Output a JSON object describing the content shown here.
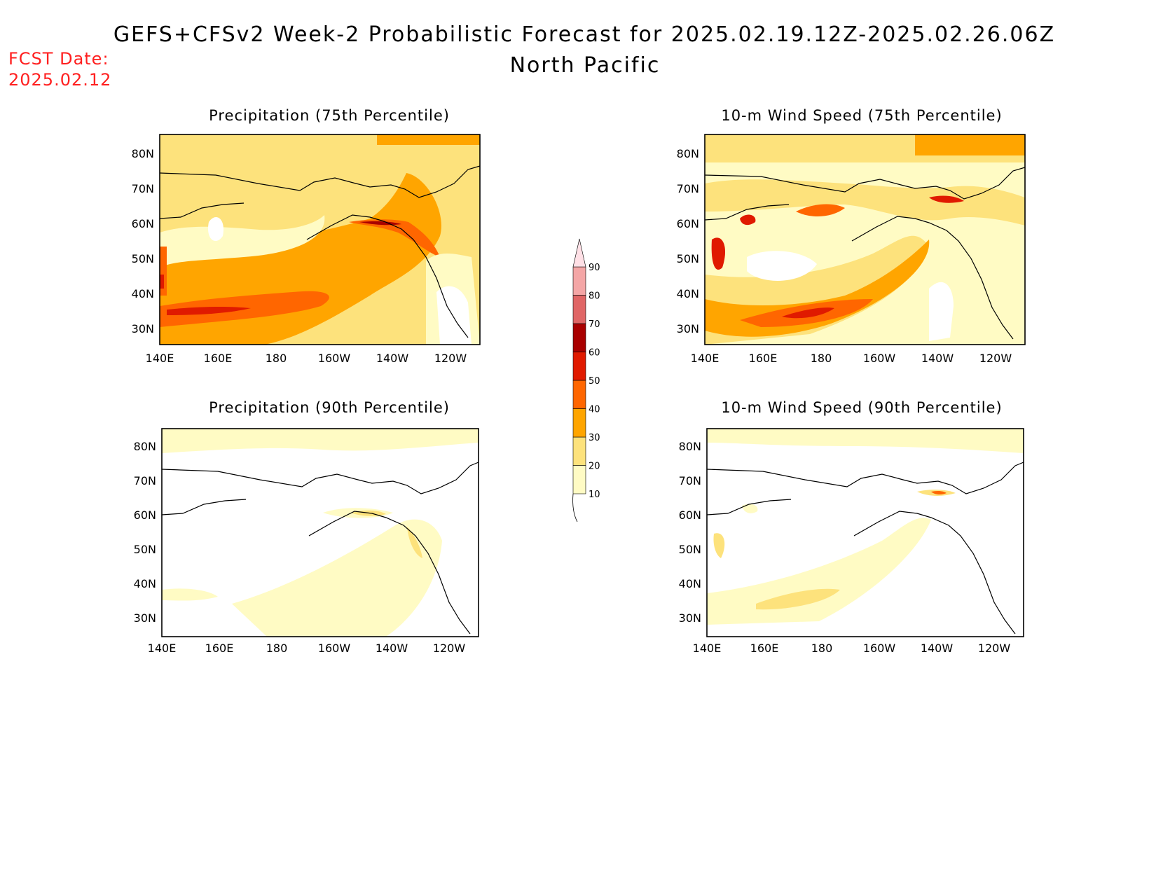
{
  "title": "GEFS+CFSv2 Week-2 Probabilistic Forecast for 2025.02.19.12Z-2025.02.26.06Z",
  "subtitle": "North Pacific",
  "fcst_label": "FCST Date:",
  "fcst_date": "2025.02.12",
  "panels": [
    {
      "id": "precip75",
      "title": "Precipitation (75th Percentile)"
    },
    {
      "id": "wind75",
      "title": "10-m Wind Speed (75th Percentile)"
    },
    {
      "id": "precip90",
      "title": "Precipitation (90th Percentile)"
    },
    {
      "id": "wind90",
      "title": "10-m Wind Speed (90th Percentile)"
    }
  ],
  "x_ticks": [
    "140E",
    "160E",
    "180",
    "160W",
    "140W",
    "120W"
  ],
  "y_ticks": [
    "80N",
    "70N",
    "60N",
    "50N",
    "40N",
    "30N"
  ],
  "colorbar": {
    "labels": [
      "10",
      "20",
      "30",
      "40",
      "50",
      "60",
      "70",
      "80",
      "90"
    ],
    "colors": [
      "#fffbc4",
      "#fde27c",
      "#ffa500",
      "#ff6600",
      "#e01a00",
      "#a90000",
      "#e06666",
      "#f4a6a6",
      "#ffe0e6"
    ]
  }
}
